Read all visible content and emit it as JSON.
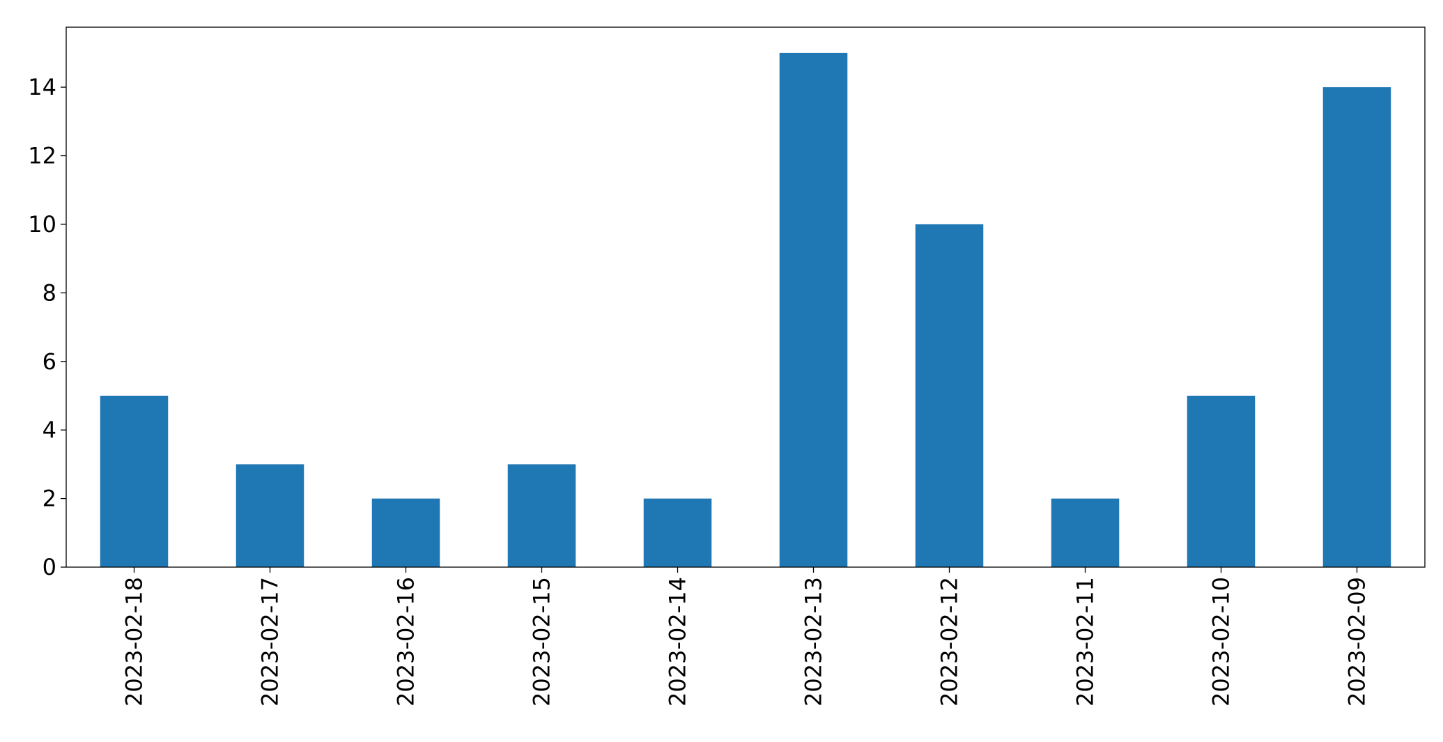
{
  "chart_data": {
    "type": "bar",
    "title": "",
    "xlabel": "",
    "ylabel": "",
    "categories": [
      "2023-02-18",
      "2023-02-17",
      "2023-02-16",
      "2023-02-15",
      "2023-02-14",
      "2023-02-13",
      "2023-02-12",
      "2023-02-11",
      "2023-02-10",
      "2023-02-09"
    ],
    "values": [
      5,
      3,
      2,
      3,
      2,
      15,
      10,
      2,
      5,
      14
    ],
    "ylim": [
      0,
      15.75
    ],
    "yticks": [
      0,
      2,
      4,
      6,
      8,
      10,
      12,
      14
    ],
    "ytick_labels": [
      "0",
      "2",
      "4",
      "6",
      "8",
      "10",
      "12",
      "14"
    ],
    "grid": false,
    "bar_color": "#1f77b4"
  }
}
